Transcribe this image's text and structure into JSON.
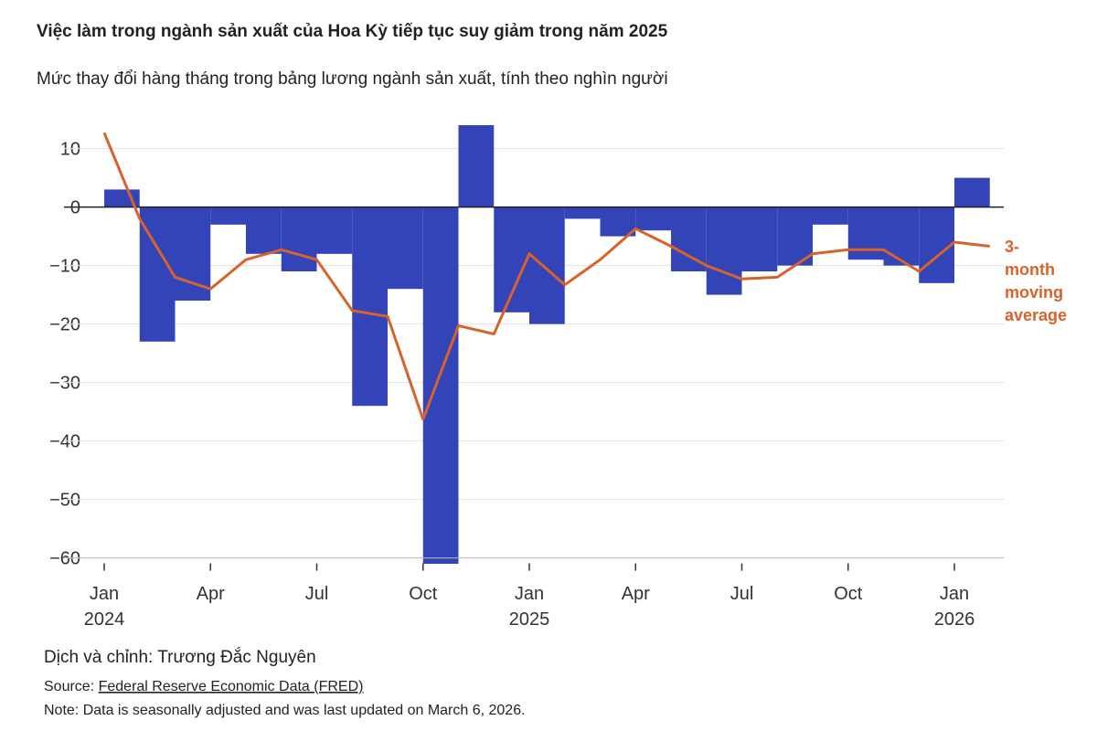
{
  "chart_data": {
    "type": "bar_line",
    "title": "Việc làm trong ngành sản xuất của Hoa Kỳ tiếp tục suy giảm trong năm 2025",
    "subtitle": "Mức thay đổi hàng tháng trong bảng lương ngành sản xuất, tính theo nghìn người",
    "categories": [
      "Jan 2024",
      null,
      null,
      "Apr",
      null,
      null,
      "Jul",
      null,
      null,
      "Oct",
      null,
      null,
      "Jan 2025",
      null,
      null,
      "Apr",
      null,
      null,
      "Jul",
      null,
      null,
      "Oct",
      null,
      null,
      "Jan 2026",
      null
    ],
    "series": [
      {
        "name": "Monthly change",
        "type": "bar",
        "color": "#3343b8",
        "values": [
          3,
          -23,
          -16,
          -3,
          -8,
          -11,
          -8,
          -34,
          -14,
          -61,
          14,
          -18,
          -20,
          -2,
          -5,
          -4,
          -11,
          -15,
          -11,
          -10,
          -3,
          -9,
          -10,
          -13,
          5,
          null
        ]
      },
      {
        "name": "3-month moving average",
        "type": "line",
        "color": "#d9622b",
        "values": [
          12.7,
          -2,
          -12,
          -14,
          -9,
          -7.3,
          -9,
          -17.7,
          -18.7,
          -36.3,
          -20.3,
          -21.7,
          -8,
          -13.3,
          -9,
          -3.7,
          -6.7,
          -10,
          -12.3,
          -12,
          -8,
          -7.3,
          -7.3,
          -11,
          -6,
          -6.7
        ]
      }
    ],
    "ylim": [
      -61,
      14
    ],
    "yticks": [
      {
        "value": -60,
        "label": "−60"
      },
      {
        "value": -50,
        "label": "−50"
      },
      {
        "value": -40,
        "label": "−40"
      },
      {
        "value": -30,
        "label": "−30"
      },
      {
        "value": -20,
        "label": "−20"
      },
      {
        "value": -10,
        "label": "−10"
      },
      0,
      10
    ],
    "grid": true,
    "credit": "Dịch và chỉnh: Trương Đắc Nguyên",
    "source_prefix": "Source:",
    "source_link": "Federal Reserve Economic Data (FRED)",
    "note": "Note: Data is seasonally adjusted and was last updated on March 6, 2026."
  }
}
